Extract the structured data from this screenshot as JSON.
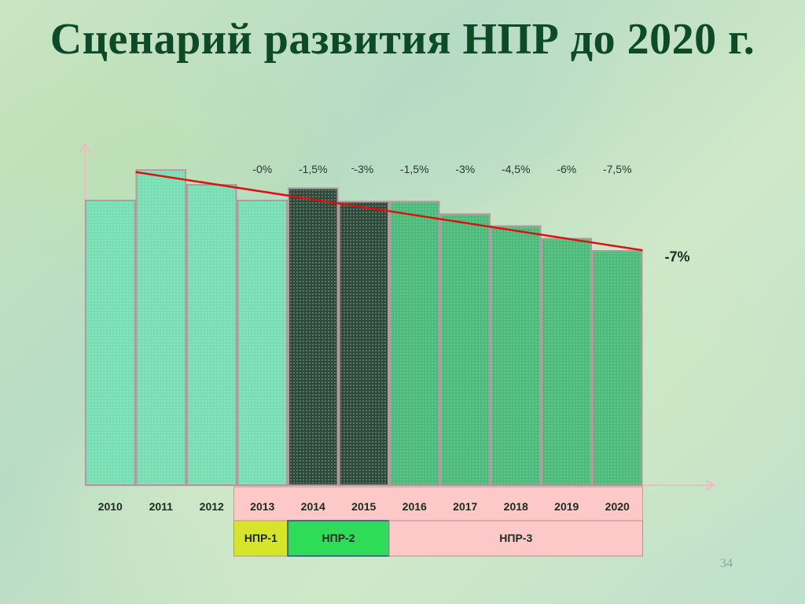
{
  "slide": {
    "title": "Сценарий развития НПР до 2020 г.",
    "number": "34"
  },
  "chart_data": {
    "type": "bar",
    "title": "",
    "categories": [
      "2010",
      "2011",
      "2012",
      "2013",
      "2014",
      "2015",
      "2016",
      "2017",
      "2018",
      "2019",
      "2020"
    ],
    "values": [
      100,
      110.7,
      105.5,
      100,
      104.3,
      99.6,
      99.6,
      95.2,
      91.0,
      86.6,
      82.3
    ],
    "ylim": [
      0,
      116
    ],
    "bar_labels": [
      "",
      "",
      "",
      "-0%",
      "-1,5%",
      "-3%",
      "-1,5%",
      "-3%",
      "-4,5%",
      "-6%",
      "-7,5%"
    ],
    "bar_sublabels": [
      "",
      "",
      "",
      "",
      "",
      "-",
      "",
      "",
      "",
      "",
      ""
    ],
    "bar_colors": [
      "#78deb3",
      "#78deb3",
      "#78deb3",
      "#78deb3",
      "#2f4a3b",
      "#2f4a3b",
      "#4cbb7a",
      "#4cbb7a",
      "#4cbb7a",
      "#4cbb7a",
      "#4cbb7a"
    ],
    "trend": {
      "from": 110,
      "to": 82.5,
      "color": "#dd1111",
      "label": "-7%"
    },
    "phases": [
      {
        "label": "НПР-1",
        "start": 3,
        "end": 3,
        "color": "#d6e42a"
      },
      {
        "label": "НПР-2",
        "start": 4,
        "end": 5,
        "color": "#2edc57"
      },
      {
        "label": "НПР-3",
        "start": 6,
        "end": 10,
        "color": "#fcc8c8"
      }
    ],
    "pink_box_color": "#fcc8c8"
  }
}
